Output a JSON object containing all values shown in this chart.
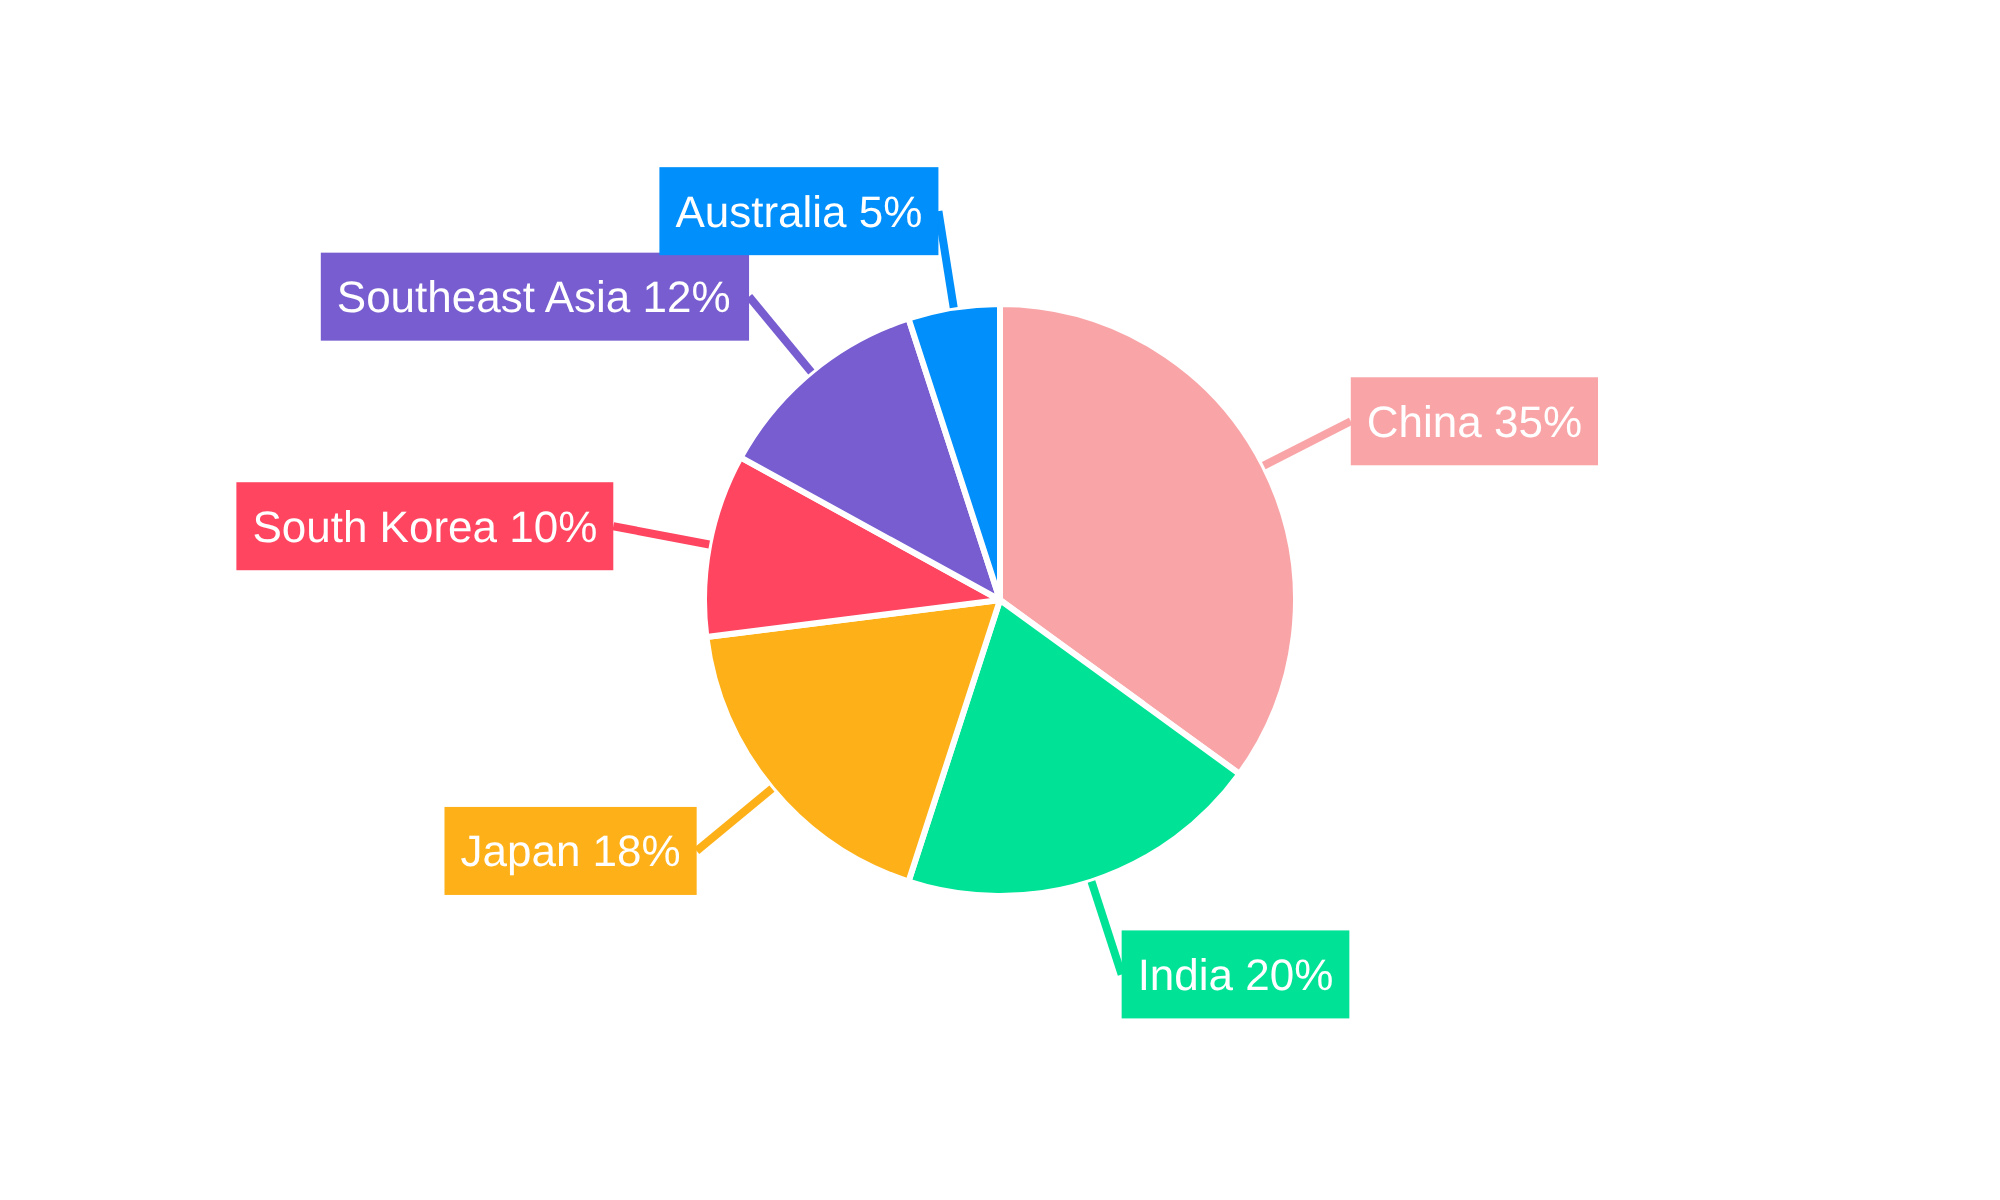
{
  "chart_data": {
    "type": "pie",
    "categories": [
      "China",
      "India",
      "Japan",
      "South Korea",
      "Southeast Asia",
      "Australia"
    ],
    "values": [
      35,
      20,
      18,
      10,
      12,
      5
    ],
    "value_labels": [
      "35%",
      "20%",
      "18%",
      "10%",
      "12%",
      "5%"
    ],
    "colors": [
      "#f9a5a8",
      "#00e396",
      "#feb019",
      "#ff4560",
      "#775dd0",
      "#008ffb"
    ]
  }
}
